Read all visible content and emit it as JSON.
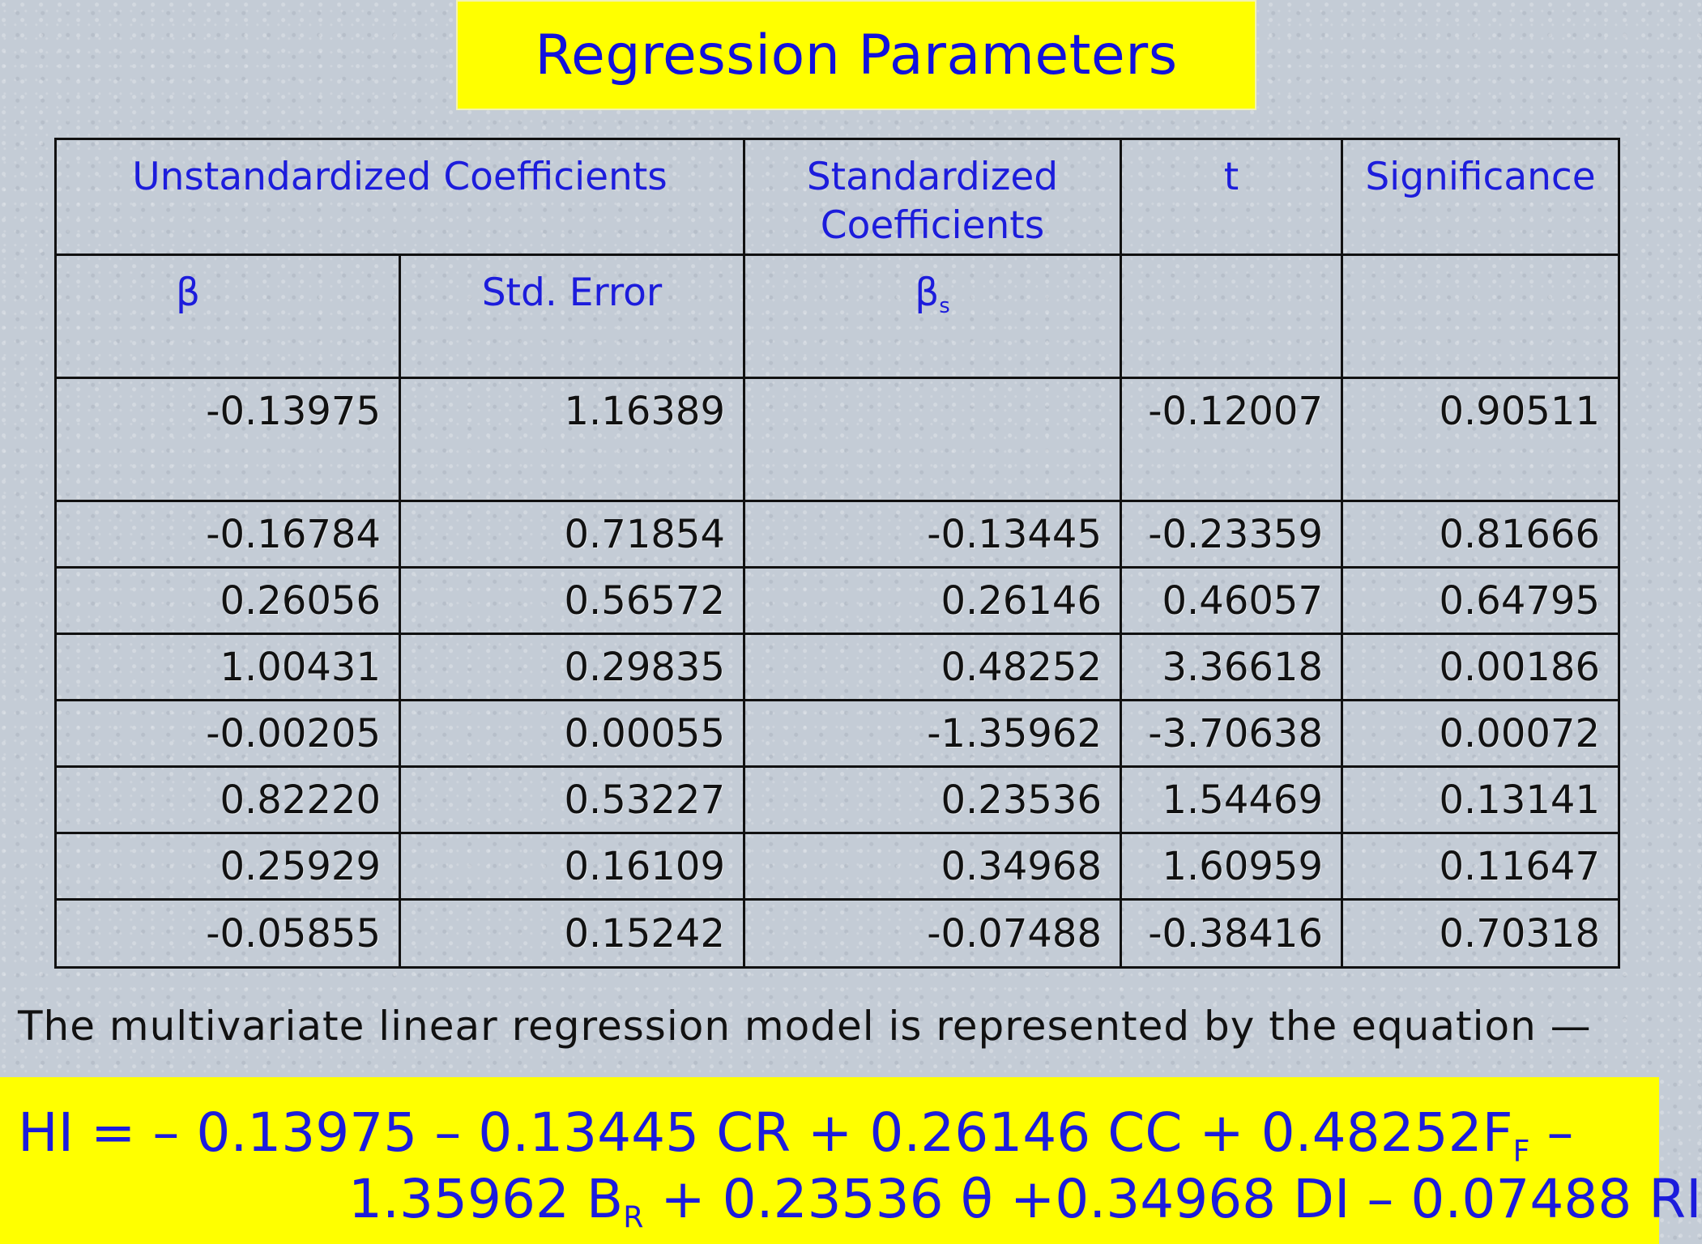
{
  "slide": {
    "title": "Regression Parameters",
    "table": {
      "header_top": [
        "Unstandardized Coefficients",
        "Standardized Coefficients",
        "t",
        "Significance"
      ],
      "header_sub": {
        "beta": "β",
        "std_error": "Std. Error",
        "beta_s": "β",
        "beta_s_sub": "s"
      },
      "rows": [
        [
          "-0.13975",
          "1.16389",
          "",
          "-0.12007",
          "0.90511"
        ],
        [
          "-0.16784",
          "0.71854",
          "-0.13445",
          "-0.23359",
          "0.81666"
        ],
        [
          "0.26056",
          "0.56572",
          "0.26146",
          "0.46057",
          "0.64795"
        ],
        [
          "1.00431",
          "0.29835",
          "0.48252",
          "3.36618",
          "0.00186"
        ],
        [
          "-0.00205",
          "0.00055",
          "-1.35962",
          "-3.70638",
          "0.00072"
        ],
        [
          "0.82220",
          "0.53227",
          "0.23536",
          "1.54469",
          "0.13141"
        ],
        [
          "0.25929",
          "0.16109",
          "0.34968",
          "1.60959",
          "0.11647"
        ],
        [
          "-0.05855",
          "0.15242",
          "-0.07488",
          "-0.38416",
          "0.70318"
        ]
      ]
    },
    "caption": "The multivariate linear regression model is represented by the equation —",
    "equation": {
      "line1_a": "HI = – 0.13975 – 0.13445 CR + 0.26146 CC + 0.48252F",
      "line1_sub": "F",
      "line1_b": " –",
      "line2_a": "1.35962 B",
      "line2_sub": "R",
      "line2_b": " + 0.23536 θ +0.34968 DI – 0.07488 RI"
    },
    "colors": {
      "highlight_yellow": "#ffff00",
      "text_blue": "#1c1cdc",
      "background_gray": "#c4ccd6"
    }
  }
}
